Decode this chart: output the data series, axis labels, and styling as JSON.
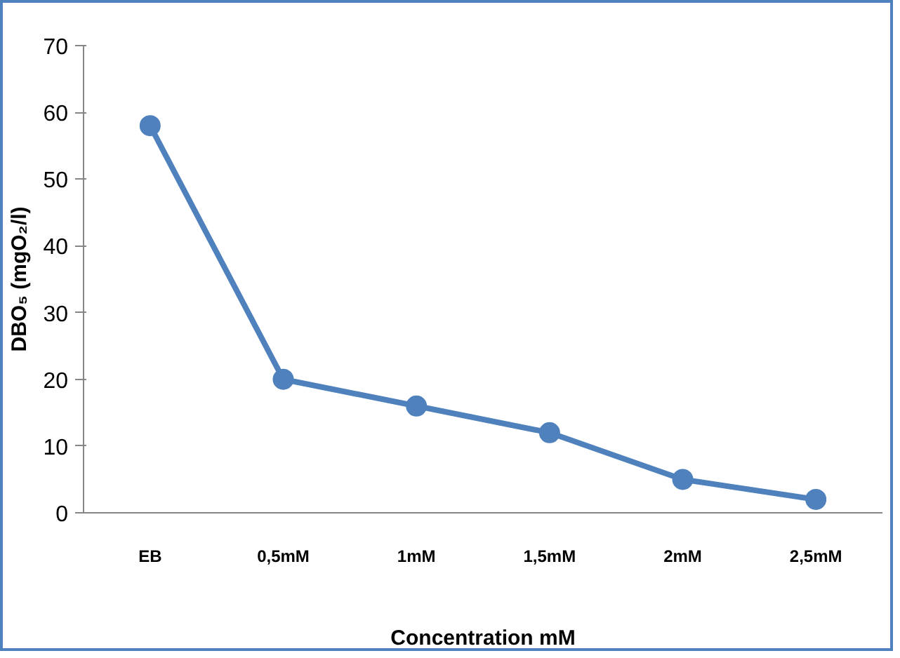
{
  "chart_data": {
    "type": "line",
    "categories": [
      "EB",
      "0,5mM",
      "1mM",
      "1,5mM",
      "2mM",
      "2,5mM"
    ],
    "series": [
      {
        "color": "#4f81bd",
        "values": [
          58,
          20,
          16,
          12,
          5,
          2
        ]
      }
    ],
    "xlabel": "Concentration mM",
    "ylabel": "DBO₅ (mgO₂/l)",
    "ylim": [
      0,
      70
    ],
    "yticks": [
      0,
      10,
      20,
      30,
      40,
      50,
      60,
      70
    ],
    "grid": false,
    "marker": "circle",
    "line_style": "solid"
  }
}
